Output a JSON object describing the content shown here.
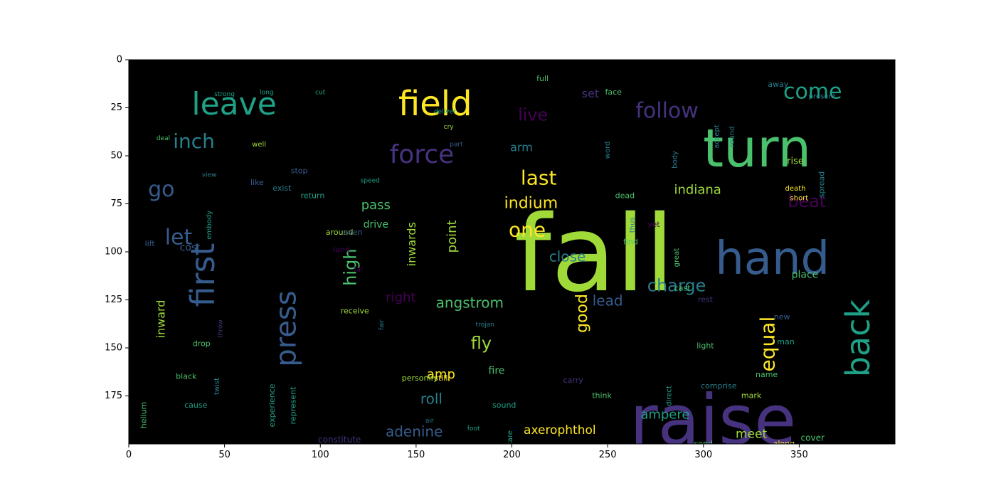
{
  "chart_data": {
    "type": "wordcloud",
    "title": "",
    "xlabel": "",
    "ylabel": "",
    "xlim": [
      0,
      400
    ],
    "ylim": [
      200,
      0
    ],
    "x_ticks": [
      0,
      50,
      100,
      150,
      200,
      250,
      300,
      350
    ],
    "y_ticks": [
      0,
      25,
      50,
      75,
      100,
      125,
      150,
      175
    ],
    "grid": false,
    "background_color": "#000000",
    "palette": [
      "#440154",
      "#46327e",
      "#365c8d",
      "#277f8e",
      "#1fa187",
      "#4ac16d",
      "#a0da39",
      "#fde725"
    ],
    "words": [
      {
        "text": "fall",
        "x": 243,
        "y": 105,
        "size": 148,
        "color": "#a0da39"
      },
      {
        "text": "raise",
        "x": 305,
        "y": 190,
        "size": 96,
        "color": "#46327e"
      },
      {
        "text": "turn",
        "x": 328,
        "y": 48,
        "size": 74,
        "color": "#4ac16d"
      },
      {
        "text": "hand",
        "x": 336,
        "y": 105,
        "size": 64,
        "color": "#365c8d"
      },
      {
        "text": "field",
        "x": 160,
        "y": 24,
        "size": 48,
        "color": "#fde725"
      },
      {
        "text": "leave",
        "x": 55,
        "y": 24,
        "size": 44,
        "color": "#1fa187"
      },
      {
        "text": "first",
        "x": 40,
        "y": 112,
        "size": 46,
        "color": "#365c8d",
        "rotate": -90
      },
      {
        "text": "back",
        "x": 382,
        "y": 145,
        "size": 46,
        "color": "#1fa187",
        "rotate": -90
      },
      {
        "text": "press",
        "x": 83,
        "y": 140,
        "size": 40,
        "color": "#365c8d",
        "rotate": -90
      },
      {
        "text": "force",
        "x": 153,
        "y": 50,
        "size": 36,
        "color": "#46327e"
      },
      {
        "text": "follow",
        "x": 281,
        "y": 27,
        "size": 30,
        "color": "#46327e"
      },
      {
        "text": "come",
        "x": 357,
        "y": 17,
        "size": 30,
        "color": "#1fa187"
      },
      {
        "text": "inch",
        "x": 34,
        "y": 43,
        "size": 28,
        "color": "#277f8e"
      },
      {
        "text": "go",
        "x": 17,
        "y": 68,
        "size": 30,
        "color": "#365c8d"
      },
      {
        "text": "let",
        "x": 26,
        "y": 93,
        "size": 30,
        "color": "#365c8d"
      },
      {
        "text": "live",
        "x": 211,
        "y": 29,
        "size": 24,
        "color": "#440154"
      },
      {
        "text": "last",
        "x": 214,
        "y": 62,
        "size": 28,
        "color": "#fde725"
      },
      {
        "text": "one",
        "x": 208,
        "y": 89,
        "size": 28,
        "color": "#fde725"
      },
      {
        "text": "beat",
        "x": 354,
        "y": 74,
        "size": 24,
        "color": "#440154"
      },
      {
        "text": "indiana",
        "x": 297,
        "y": 68,
        "size": 18,
        "color": "#a0da39"
      },
      {
        "text": "indium",
        "x": 210,
        "y": 75,
        "size": 22,
        "color": "#fde725"
      },
      {
        "text": "charge",
        "x": 286,
        "y": 118,
        "size": 24,
        "color": "#277f8e"
      },
      {
        "text": "equal",
        "x": 334,
        "y": 148,
        "size": 28,
        "color": "#fde725",
        "rotate": -90
      },
      {
        "text": "high",
        "x": 116,
        "y": 108,
        "size": 24,
        "color": "#4ac16d",
        "rotate": -90
      },
      {
        "text": "angstrom",
        "x": 178,
        "y": 127,
        "size": 20,
        "color": "#4ac16d"
      },
      {
        "text": "good",
        "x": 237,
        "y": 132,
        "size": 22,
        "color": "#fde725",
        "rotate": -90
      },
      {
        "text": "fly",
        "x": 184,
        "y": 148,
        "size": 24,
        "color": "#a0da39"
      },
      {
        "text": "close",
        "x": 229,
        "y": 103,
        "size": 20,
        "color": "#277f8e"
      },
      {
        "text": "right",
        "x": 142,
        "y": 124,
        "size": 18,
        "color": "#440154"
      },
      {
        "text": "lead",
        "x": 250,
        "y": 126,
        "size": 20,
        "color": "#365c8d"
      },
      {
        "text": "pass",
        "x": 129,
        "y": 76,
        "size": 18,
        "color": "#4ac16d"
      },
      {
        "text": "point",
        "x": 169,
        "y": 92,
        "size": 18,
        "color": "#a0da39",
        "rotate": -90
      },
      {
        "text": "inwards",
        "x": 148,
        "y": 96,
        "size": 16,
        "color": "#a0da39",
        "rotate": -90
      },
      {
        "text": "inward",
        "x": 17,
        "y": 135,
        "size": 16,
        "color": "#a0da39",
        "rotate": -90
      },
      {
        "text": "amp",
        "x": 163,
        "y": 164,
        "size": 18,
        "color": "#fde725"
      },
      {
        "text": "roll",
        "x": 158,
        "y": 177,
        "size": 20,
        "color": "#277f8e"
      },
      {
        "text": "adenine",
        "x": 149,
        "y": 194,
        "size": 20,
        "color": "#365c8d"
      },
      {
        "text": "axerophthol",
        "x": 225,
        "y": 193,
        "size": 17,
        "color": "#fde725"
      },
      {
        "text": "ampere",
        "x": 280,
        "y": 185,
        "size": 18,
        "color": "#1fa187"
      },
      {
        "text": "meet",
        "x": 325,
        "y": 195,
        "size": 17,
        "color": "#a0da39"
      },
      {
        "text": "constitute",
        "x": 110,
        "y": 198,
        "size": 12,
        "color": "#46327e"
      },
      {
        "text": "arm",
        "x": 205,
        "y": 46,
        "size": 16,
        "color": "#277f8e"
      },
      {
        "text": "set",
        "x": 241,
        "y": 18,
        "size": 16,
        "color": "#46327e"
      },
      {
        "text": "place",
        "x": 353,
        "y": 112,
        "size": 14,
        "color": "#4ac16d"
      },
      {
        "text": "rise",
        "x": 348,
        "y": 53,
        "size": 13,
        "color": "#a0da39"
      },
      {
        "text": "cover",
        "x": 357,
        "y": 197,
        "size": 12,
        "color": "#4ac16d"
      },
      {
        "text": "drive",
        "x": 129,
        "y": 86,
        "size": 14,
        "color": "#4ac16d"
      },
      {
        "text": "cost",
        "x": 32,
        "y": 98,
        "size": 14,
        "color": "#365c8d"
      },
      {
        "text": "fire",
        "x": 192,
        "y": 162,
        "size": 14,
        "color": "#4ac16d"
      },
      {
        "text": "personify",
        "x": 152,
        "y": 166,
        "size": 11,
        "color": "#a0da39"
      },
      {
        "text": "still",
        "x": 163,
        "y": 166,
        "size": 11,
        "color": "#fde725"
      },
      {
        "text": "death",
        "x": 348,
        "y": 67,
        "size": 10,
        "color": "#fde725"
      },
      {
        "text": "short",
        "x": 350,
        "y": 72,
        "size": 10,
        "color": "#fde725"
      },
      {
        "text": "return",
        "x": 96,
        "y": 71,
        "size": 11,
        "color": "#1fa187"
      },
      {
        "text": "exist",
        "x": 80,
        "y": 67,
        "size": 11,
        "color": "#277f8e"
      },
      {
        "text": "around",
        "x": 110,
        "y": 90,
        "size": 11,
        "color": "#a0da39"
      },
      {
        "text": "represent",
        "x": 86,
        "y": 180,
        "size": 11,
        "color": "#1fa187",
        "rotate": -90
      },
      {
        "text": "experience",
        "x": 75,
        "y": 180,
        "size": 11,
        "color": "#1fa187",
        "rotate": -90
      },
      {
        "text": "receive",
        "x": 118,
        "y": 131,
        "size": 11,
        "color": "#a0da39"
      },
      {
        "text": "sound",
        "x": 196,
        "y": 180,
        "size": 11,
        "color": "#1fa187"
      },
      {
        "text": "comprise",
        "x": 308,
        "y": 170,
        "size": 11,
        "color": "#277f8e"
      },
      {
        "text": "think",
        "x": 247,
        "y": 175,
        "size": 11,
        "color": "#4ac16d"
      },
      {
        "text": "carry",
        "x": 232,
        "y": 167,
        "size": 11,
        "color": "#46327e"
      },
      {
        "text": "cause",
        "x": 35,
        "y": 180,
        "size": 11,
        "color": "#1fa187"
      },
      {
        "text": "drop",
        "x": 38,
        "y": 148,
        "size": 11,
        "color": "#4ac16d"
      },
      {
        "text": "black",
        "x": 30,
        "y": 165,
        "size": 11,
        "color": "#4ac16d"
      },
      {
        "text": "helium",
        "x": 8,
        "y": 185,
        "size": 11,
        "color": "#4ac16d",
        "rotate": -90
      },
      {
        "text": "along",
        "x": 342,
        "y": 200,
        "size": 11,
        "color": "#fde725"
      },
      {
        "text": "send",
        "x": 300,
        "y": 200,
        "size": 11,
        "color": "#4ac16d"
      },
      {
        "text": "mark",
        "x": 325,
        "y": 175,
        "size": 11,
        "color": "#a0da39"
      },
      {
        "text": "name",
        "x": 333,
        "y": 164,
        "size": 11,
        "color": "#4ac16d"
      },
      {
        "text": "man",
        "x": 343,
        "y": 147,
        "size": 11,
        "color": "#1fa187"
      },
      {
        "text": "new",
        "x": 341,
        "y": 134,
        "size": 11,
        "color": "#365c8d"
      },
      {
        "text": "rest",
        "x": 301,
        "y": 125,
        "size": 11,
        "color": "#46327e"
      },
      {
        "text": "cast",
        "x": 289,
        "y": 119,
        "size": 11,
        "color": "#4ac16d"
      },
      {
        "text": "light",
        "x": 301,
        "y": 149,
        "size": 11,
        "color": "#4ac16d"
      },
      {
        "text": "find",
        "x": 262,
        "y": 95,
        "size": 11,
        "color": "#4ac16d"
      },
      {
        "text": "dead",
        "x": 259,
        "y": 71,
        "size": 11,
        "color": "#4ac16d"
      },
      {
        "text": "stop",
        "x": 89,
        "y": 58,
        "size": 11,
        "color": "#365c8d"
      },
      {
        "text": "well",
        "x": 68,
        "y": 44,
        "size": 10,
        "color": "#a0da39"
      },
      {
        "text": "like",
        "x": 67,
        "y": 64,
        "size": 11,
        "color": "#365c8d"
      },
      {
        "text": "lift",
        "x": 11,
        "y": 96,
        "size": 11,
        "color": "#365c8d"
      },
      {
        "text": "even",
        "x": 117,
        "y": 90,
        "size": 11,
        "color": "#365c8d"
      },
      {
        "text": "land",
        "x": 111,
        "y": 99,
        "size": 11,
        "color": "#440154"
      },
      {
        "text": "far",
        "x": 120,
        "y": 109,
        "size": 10,
        "color": "#440154"
      },
      {
        "text": "full",
        "x": 216,
        "y": 10,
        "size": 11,
        "color": "#4ac16d"
      },
      {
        "text": "face",
        "x": 253,
        "y": 17,
        "size": 11,
        "color": "#4ac16d"
      },
      {
        "text": "away",
        "x": 339,
        "y": 13,
        "size": 11,
        "color": "#277f8e"
      },
      {
        "text": "present",
        "x": 362,
        "y": 19,
        "size": 10,
        "color": "#277f8e"
      },
      {
        "text": "accept",
        "x": 307,
        "y": 40,
        "size": 10,
        "color": "#277f8e",
        "rotate": -90
      },
      {
        "text": "round",
        "x": 315,
        "y": 40,
        "size": 10,
        "color": "#277f8e",
        "rotate": -90
      },
      {
        "text": "spread",
        "x": 362,
        "y": 65,
        "size": 11,
        "color": "#277f8e",
        "rotate": -90
      },
      {
        "text": "word",
        "x": 250,
        "y": 47,
        "size": 10,
        "color": "#277f8e",
        "rotate": -90
      },
      {
        "text": "body",
        "x": 285,
        "y": 52,
        "size": 10,
        "color": "#277f8e",
        "rotate": -90
      },
      {
        "text": "thus",
        "x": 263,
        "y": 86,
        "size": 10,
        "color": "#277f8e",
        "rotate": -90
      },
      {
        "text": "yet",
        "x": 274,
        "y": 86,
        "size": 11,
        "color": "#440154"
      },
      {
        "text": "great",
        "x": 286,
        "y": 103,
        "size": 10,
        "color": "#4ac16d",
        "rotate": -90
      },
      {
        "text": "direct",
        "x": 282,
        "y": 175,
        "size": 10,
        "color": "#1fa187",
        "rotate": -90
      },
      {
        "text": "care",
        "x": 199,
        "y": 197,
        "size": 10,
        "color": "#1fa187",
        "rotate": -90
      },
      {
        "text": "embody",
        "x": 42,
        "y": 86,
        "size": 10,
        "color": "#1fa187",
        "rotate": -90
      },
      {
        "text": "twist",
        "x": 46,
        "y": 170,
        "size": 10,
        "color": "#277f8e",
        "rotate": -90
      },
      {
        "text": "throw",
        "x": 48,
        "y": 140,
        "size": 9,
        "color": "#46327e",
        "rotate": -90
      },
      {
        "text": "trojan",
        "x": 186,
        "y": 138,
        "size": 9,
        "color": "#277f8e"
      },
      {
        "text": "fair",
        "x": 132,
        "y": 138,
        "size": 9,
        "color": "#277f8e",
        "rotate": -90
      },
      {
        "text": "view",
        "x": 42,
        "y": 60,
        "size": 9,
        "color": "#277f8e"
      },
      {
        "text": "deal",
        "x": 18,
        "y": 41,
        "size": 9,
        "color": "#4ac16d"
      },
      {
        "text": "long",
        "x": 72,
        "y": 17,
        "size": 9,
        "color": "#1fa187"
      },
      {
        "text": "strong",
        "x": 50,
        "y": 18,
        "size": 9,
        "color": "#1fa187"
      },
      {
        "text": "cut",
        "x": 100,
        "y": 17,
        "size": 9,
        "color": "#1fa187"
      },
      {
        "text": "deliver",
        "x": 165,
        "y": 27,
        "size": 9,
        "color": "#1fa187"
      },
      {
        "text": "cry",
        "x": 167,
        "y": 35,
        "size": 9,
        "color": "#a0da39"
      },
      {
        "text": "part",
        "x": 171,
        "y": 44,
        "size": 9,
        "color": "#365c8d"
      },
      {
        "text": "speed",
        "x": 126,
        "y": 63,
        "size": 9,
        "color": "#1fa187"
      },
      {
        "text": "air",
        "x": 157,
        "y": 188,
        "size": 9,
        "color": "#277f8e"
      },
      {
        "text": "foot",
        "x": 180,
        "y": 192,
        "size": 9,
        "color": "#1fa187"
      }
    ]
  }
}
